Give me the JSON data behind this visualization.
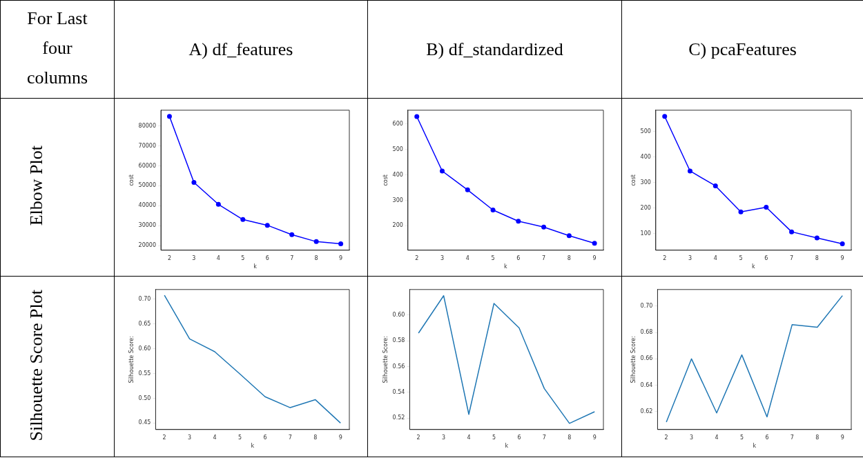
{
  "chart_data": [
    {
      "type": "other",
      "annotations": [
        "For Last four columns",
        "A)  df_features",
        "B)  df_standardized",
        "C)  pcaFeatures",
        "Elbow Plot",
        "Silhouette Score Plot"
      ]
    },
    {
      "type": "line",
      "xlabel": "k",
      "ylabel": "cost",
      "x": [
        2,
        3,
        4,
        5,
        6,
        7,
        8,
        9
      ],
      "xlim": [
        1.65,
        9.35
      ],
      "xticks": [
        2,
        3,
        4,
        5,
        6,
        7,
        8,
        9
      ],
      "ylim": [
        17700,
        87900
      ],
      "yticks": [
        20000,
        30000,
        40000,
        50000,
        60000,
        70000,
        80000
      ],
      "marker": "circle",
      "series": [
        {
          "color": "#0000ff",
          "values": [
            84800,
            51700,
            40700,
            33100,
            30200,
            25500,
            22000,
            20900
          ]
        }
      ]
    },
    {
      "type": "line",
      "xlabel": "k",
      "ylabel": "cost",
      "x": [
        2,
        3,
        4,
        5,
        6,
        7,
        8,
        9
      ],
      "xlim": [
        1.65,
        9.35
      ],
      "xticks": [
        2,
        3,
        4,
        5,
        6,
        7,
        8,
        9
      ],
      "ylim": [
        104,
        654
      ],
      "yticks": [
        200,
        300,
        400,
        500,
        600
      ],
      "marker": "circle",
      "series": [
        {
          "color": "#0000ff",
          "values": [
            629,
            415,
            341,
            262,
            218,
            195,
            161,
            131
          ]
        }
      ]
    },
    {
      "type": "line",
      "xlabel": "k",
      "ylabel": "cost",
      "x": [
        2,
        3,
        4,
        5,
        6,
        7,
        8,
        9
      ],
      "xlim": [
        1.65,
        9.35
      ],
      "xticks": [
        2,
        3,
        4,
        5,
        6,
        7,
        8,
        9
      ],
      "ylim": [
        35,
        583
      ],
      "yticks": [
        100,
        200,
        300,
        400,
        500
      ],
      "marker": "circle",
      "series": [
        {
          "color": "#0000ff",
          "values": [
            559,
            345,
            287,
            185,
            203,
            107,
            83,
            60
          ]
        }
      ]
    },
    {
      "type": "line",
      "xlabel": "k",
      "ylabel": "Silhouette Score:",
      "x": [
        2,
        3,
        4,
        5,
        6,
        7,
        8,
        9
      ],
      "xlim": [
        1.65,
        9.35
      ],
      "xticks": [
        2,
        3,
        4,
        5,
        6,
        7,
        8,
        9
      ],
      "ylim": [
        0.4368,
        0.7196
      ],
      "yticks": [
        {
          "value": 0.45,
          "label": "0.45"
        },
        {
          "value": 0.5,
          "label": "0.50"
        },
        {
          "value": 0.55,
          "label": "0.55"
        },
        {
          "value": 0.6,
          "label": "0.60"
        },
        {
          "value": 0.65,
          "label": "0.65"
        },
        {
          "value": 0.7,
          "label": "0.70"
        }
      ],
      "series": [
        {
          "color": "#1f77b4",
          "values": [
            0.708,
            0.62,
            0.594,
            0.549,
            0.503,
            0.481,
            0.497,
            0.45
          ]
        }
      ]
    },
    {
      "type": "line",
      "xlabel": "k",
      "ylabel": "Silhouette Score:",
      "x": [
        2,
        3,
        4,
        5,
        6,
        7,
        8,
        9
      ],
      "xlim": [
        1.65,
        9.35
      ],
      "xticks": [
        2,
        3,
        4,
        5,
        6,
        7,
        8,
        9
      ],
      "ylim": [
        0.5112,
        0.6198
      ],
      "yticks": [
        {
          "value": 0.52,
          "label": "0.52"
        },
        {
          "value": 0.54,
          "label": "0.54"
        },
        {
          "value": 0.56,
          "label": "0.56"
        },
        {
          "value": 0.58,
          "label": "0.58"
        },
        {
          "value": 0.6,
          "label": "0.60"
        }
      ],
      "series": [
        {
          "color": "#1f77b4",
          "values": [
            0.586,
            0.615,
            0.523,
            0.609,
            0.59,
            0.543,
            0.516,
            0.525
          ]
        }
      ]
    },
    {
      "type": "line",
      "xlabel": "k",
      "ylabel": "Silhouette Score:",
      "x": [
        2,
        3,
        4,
        5,
        6,
        7,
        8,
        9
      ],
      "xlim": [
        1.65,
        9.35
      ],
      "xticks": [
        2,
        3,
        4,
        5,
        6,
        7,
        8,
        9
      ],
      "ylim": [
        0.6064,
        0.7126
      ],
      "yticks": [
        {
          "value": 0.62,
          "label": "0.62"
        },
        {
          "value": 0.64,
          "label": "0.64"
        },
        {
          "value": 0.66,
          "label": "0.66"
        },
        {
          "value": 0.68,
          "label": "0.68"
        },
        {
          "value": 0.7,
          "label": "0.70"
        }
      ],
      "series": [
        {
          "color": "#1f77b4",
          "values": [
            0.612,
            0.66,
            0.619,
            0.663,
            0.616,
            0.686,
            0.684,
            0.708
          ]
        }
      ]
    }
  ]
}
